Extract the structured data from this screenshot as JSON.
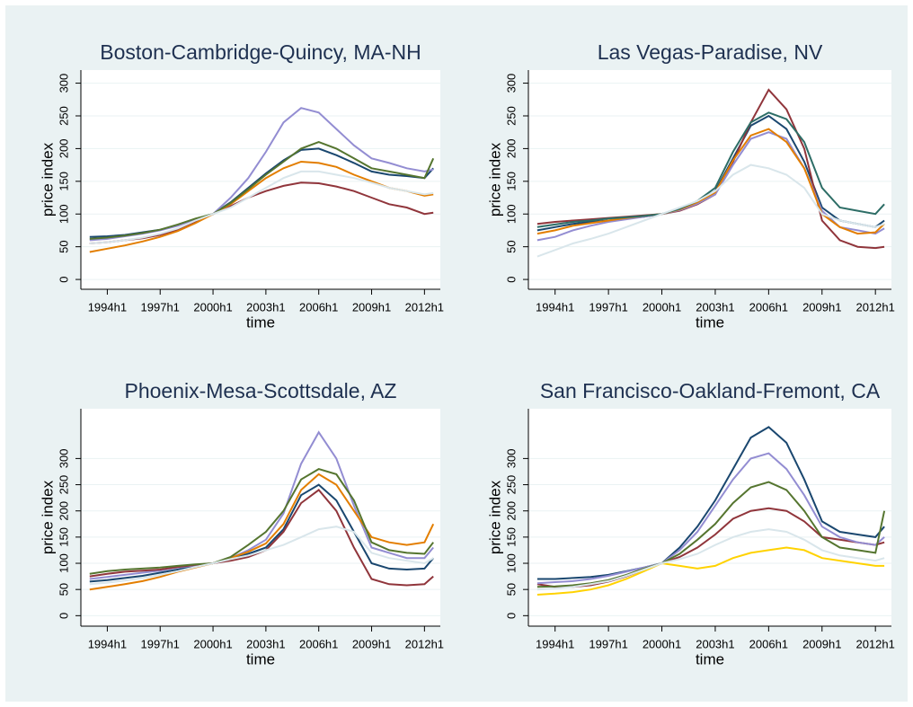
{
  "chart_data": [
    {
      "type": "line",
      "title": "Boston-Cambridge-Quincy, MA-NH",
      "xlabel": "time",
      "ylabel": "price index",
      "grid": true,
      "x": [
        1993,
        1994,
        1995,
        1996,
        1997,
        1998,
        1999,
        2000,
        2001,
        2002,
        2003,
        2004,
        2005,
        2006,
        2007,
        2008,
        2009,
        2010,
        2011,
        2012,
        2012.5
      ],
      "xlim": [
        1992.5,
        2012.9
      ],
      "xticks": [
        {
          "value": 1994,
          "label": "1994h1"
        },
        {
          "value": 1997,
          "label": "1997h1"
        },
        {
          "value": 2000,
          "label": "2000h1"
        },
        {
          "value": 2003,
          "label": "2003h1"
        },
        {
          "value": 2006,
          "label": "2006h1"
        },
        {
          "value": 2009,
          "label": "2009h1"
        },
        {
          "value": 2012,
          "label": "2012h1"
        }
      ],
      "ylim": [
        -15,
        320
      ],
      "yticks": [
        0,
        50,
        100,
        150,
        200,
        250,
        300
      ],
      "series": [
        {
          "color": "#1a476f",
          "values": [
            65,
            66,
            68,
            72,
            76,
            83,
            92,
            100,
            118,
            140,
            162,
            182,
            198,
            200,
            190,
            178,
            165,
            160,
            158,
            155,
            170
          ]
        },
        {
          "color": "#90353b",
          "values": [
            55,
            57,
            60,
            63,
            68,
            76,
            88,
            100,
            112,
            125,
            135,
            143,
            148,
            147,
            142,
            135,
            125,
            115,
            110,
            100,
            102
          ]
        },
        {
          "color": "#938dd2",
          "values": [
            60,
            62,
            66,
            70,
            75,
            82,
            92,
            100,
            125,
            155,
            195,
            240,
            262,
            255,
            230,
            205,
            185,
            178,
            170,
            165,
            168
          ]
        },
        {
          "color": "#e37e00",
          "values": [
            42,
            47,
            52,
            58,
            65,
            74,
            86,
            100,
            115,
            135,
            155,
            170,
            180,
            178,
            172,
            160,
            150,
            140,
            135,
            128,
            130
          ]
        },
        {
          "color": "#55752f",
          "values": [
            62,
            64,
            67,
            71,
            76,
            84,
            93,
            100,
            117,
            138,
            160,
            180,
            200,
            210,
            200,
            185,
            170,
            165,
            160,
            155,
            185
          ]
        },
        {
          "color": "#d9e6eb",
          "values": [
            55,
            57,
            60,
            64,
            70,
            78,
            90,
            100,
            110,
            125,
            140,
            155,
            165,
            165,
            160,
            155,
            148,
            140,
            135,
            130,
            132
          ]
        }
      ]
    },
    {
      "type": "line",
      "title": "Las Vegas-Paradise, NV",
      "xlabel": "time",
      "ylabel": "price index",
      "grid": true,
      "x": [
        1993,
        1994,
        1995,
        1996,
        1997,
        1998,
        1999,
        2000,
        2001,
        2002,
        2003,
        2004,
        2005,
        2006,
        2007,
        2008,
        2009,
        2010,
        2011,
        2012,
        2012.5
      ],
      "xlim": [
        1992.5,
        2012.9
      ],
      "xticks": [
        {
          "value": 1994,
          "label": "1994h1"
        },
        {
          "value": 1997,
          "label": "1997h1"
        },
        {
          "value": 2000,
          "label": "2000h1"
        },
        {
          "value": 2003,
          "label": "2003h1"
        },
        {
          "value": 2006,
          "label": "2006h1"
        },
        {
          "value": 2009,
          "label": "2009h1"
        },
        {
          "value": 2012,
          "label": "2012h1"
        }
      ],
      "ylim": [
        -15,
        320
      ],
      "yticks": [
        0,
        50,
        100,
        150,
        200,
        250,
        300
      ],
      "series": [
        {
          "color": "#1a476f",
          "values": [
            75,
            80,
            85,
            88,
            90,
            93,
            96,
            100,
            108,
            118,
            135,
            185,
            235,
            250,
            230,
            180,
            110,
            90,
            85,
            80,
            90
          ]
        },
        {
          "color": "#90353b",
          "values": [
            85,
            88,
            90,
            92,
            94,
            96,
            98,
            100,
            105,
            115,
            130,
            180,
            240,
            290,
            260,
            200,
            90,
            60,
            50,
            48,
            50
          ]
        },
        {
          "color": "#938dd2",
          "values": [
            60,
            65,
            75,
            82,
            88,
            92,
            96,
            100,
            106,
            116,
            130,
            175,
            215,
            225,
            215,
            170,
            105,
            80,
            75,
            70,
            78
          ]
        },
        {
          "color": "#e37e00",
          "values": [
            70,
            75,
            82,
            86,
            90,
            94,
            97,
            100,
            107,
            118,
            133,
            182,
            220,
            230,
            210,
            170,
            100,
            80,
            70,
            72,
            85
          ]
        },
        {
          "color": "#2d6d66",
          "values": [
            80,
            84,
            88,
            90,
            93,
            95,
            97,
            100,
            108,
            120,
            140,
            195,
            240,
            255,
            245,
            210,
            140,
            110,
            105,
            100,
            115
          ]
        },
        {
          "color": "#d9e6eb",
          "values": [
            35,
            45,
            55,
            62,
            70,
            80,
            90,
            100,
            110,
            120,
            135,
            160,
            175,
            170,
            160,
            140,
            100,
            90,
            85,
            80,
            85
          ]
        }
      ]
    },
    {
      "type": "line",
      "title": "Phoenix-Mesa-Scottsdale, AZ",
      "xlabel": "time",
      "ylabel": "price index",
      "grid": true,
      "x": [
        1993,
        1994,
        1995,
        1996,
        1997,
        1998,
        1999,
        2000,
        2001,
        2002,
        2003,
        2004,
        2005,
        2006,
        2007,
        2008,
        2009,
        2010,
        2011,
        2012,
        2012.5
      ],
      "xlim": [
        1992.5,
        2012.9
      ],
      "xticks": [
        {
          "value": 1994,
          "label": "1994h1"
        },
        {
          "value": 1997,
          "label": "1997h1"
        },
        {
          "value": 2000,
          "label": "2000h1"
        },
        {
          "value": 2003,
          "label": "2003h1"
        },
        {
          "value": 2006,
          "label": "2006h1"
        },
        {
          "value": 2009,
          "label": "2009h1"
        },
        {
          "value": 2012,
          "label": "2012h1"
        }
      ],
      "ylim": [
        -20,
        395
      ],
      "yticks": [
        0,
        50,
        100,
        150,
        200,
        250,
        300
      ],
      "series": [
        {
          "color": "#1a476f",
          "values": [
            65,
            68,
            72,
            76,
            82,
            88,
            94,
            100,
            108,
            118,
            130,
            165,
            230,
            250,
            220,
            160,
            100,
            90,
            88,
            90,
            110
          ]
        },
        {
          "color": "#938dd2",
          "values": [
            70,
            74,
            78,
            82,
            86,
            92,
            96,
            100,
            110,
            125,
            145,
            195,
            290,
            350,
            300,
            210,
            130,
            120,
            110,
            110,
            130
          ]
        },
        {
          "color": "#90353b",
          "values": [
            75,
            80,
            84,
            86,
            88,
            93,
            97,
            100,
            105,
            112,
            125,
            160,
            215,
            240,
            200,
            130,
            70,
            60,
            58,
            60,
            75
          ]
        },
        {
          "color": "#e37e00",
          "values": [
            50,
            55,
            60,
            66,
            74,
            84,
            92,
            100,
            110,
            122,
            138,
            175,
            240,
            270,
            250,
            200,
            150,
            140,
            135,
            140,
            175
          ]
        },
        {
          "color": "#55752f",
          "values": [
            80,
            85,
            88,
            90,
            92,
            95,
            98,
            100,
            112,
            135,
            160,
            200,
            260,
            280,
            270,
            220,
            140,
            125,
            120,
            118,
            140
          ]
        },
        {
          "color": "#d9e6eb",
          "values": [
            60,
            63,
            67,
            72,
            78,
            85,
            93,
            100,
            108,
            115,
            125,
            135,
            150,
            165,
            170,
            160,
            120,
            110,
            105,
            100,
            110
          ]
        }
      ]
    },
    {
      "type": "line",
      "title": "San Francisco-Oakland-Fremont, CA",
      "xlabel": "time",
      "ylabel": "price index",
      "grid": true,
      "x": [
        1993,
        1994,
        1995,
        1996,
        1997,
        1998,
        1999,
        2000,
        2001,
        2002,
        2003,
        2004,
        2005,
        2006,
        2007,
        2008,
        2009,
        2010,
        2011,
        2012,
        2012.5
      ],
      "xlim": [
        1992.5,
        2012.9
      ],
      "xticks": [
        {
          "value": 1994,
          "label": "1994h1"
        },
        {
          "value": 1997,
          "label": "1997h1"
        },
        {
          "value": 2000,
          "label": "2000h1"
        },
        {
          "value": 2003,
          "label": "2003h1"
        },
        {
          "value": 2006,
          "label": "2006h1"
        },
        {
          "value": 2009,
          "label": "2009h1"
        },
        {
          "value": 2012,
          "label": "2012h1"
        }
      ],
      "ylim": [
        -20,
        395
      ],
      "yticks": [
        0,
        50,
        100,
        150,
        200,
        250,
        300
      ],
      "series": [
        {
          "color": "#1a476f",
          "values": [
            70,
            70,
            72,
            74,
            78,
            85,
            92,
            100,
            130,
            170,
            220,
            280,
            340,
            360,
            330,
            260,
            180,
            160,
            155,
            150,
            170
          ]
        },
        {
          "color": "#90353b",
          "values": [
            60,
            55,
            55,
            58,
            65,
            75,
            88,
            100,
            112,
            130,
            155,
            185,
            200,
            205,
            200,
            180,
            150,
            145,
            140,
            135,
            140
          ]
        },
        {
          "color": "#ffd200",
          "values": [
            40,
            42,
            45,
            50,
            58,
            70,
            85,
            100,
            95,
            90,
            95,
            110,
            120,
            125,
            130,
            125,
            110,
            105,
            100,
            95,
            95
          ]
        },
        {
          "color": "#938dd2",
          "values": [
            62,
            64,
            66,
            70,
            76,
            84,
            92,
            100,
            125,
            160,
            210,
            260,
            300,
            310,
            280,
            230,
            170,
            150,
            140,
            135,
            150
          ]
        },
        {
          "color": "#55752f",
          "values": [
            55,
            56,
            58,
            62,
            68,
            78,
            90,
            100,
            118,
            145,
            175,
            215,
            245,
            255,
            240,
            200,
            150,
            130,
            125,
            120,
            200
          ]
        },
        {
          "color": "#d9e6eb",
          "values": [
            50,
            52,
            55,
            60,
            66,
            76,
            88,
            100,
            108,
            118,
            135,
            150,
            160,
            165,
            160,
            145,
            125,
            115,
            110,
            105,
            110
          ]
        }
      ]
    }
  ]
}
